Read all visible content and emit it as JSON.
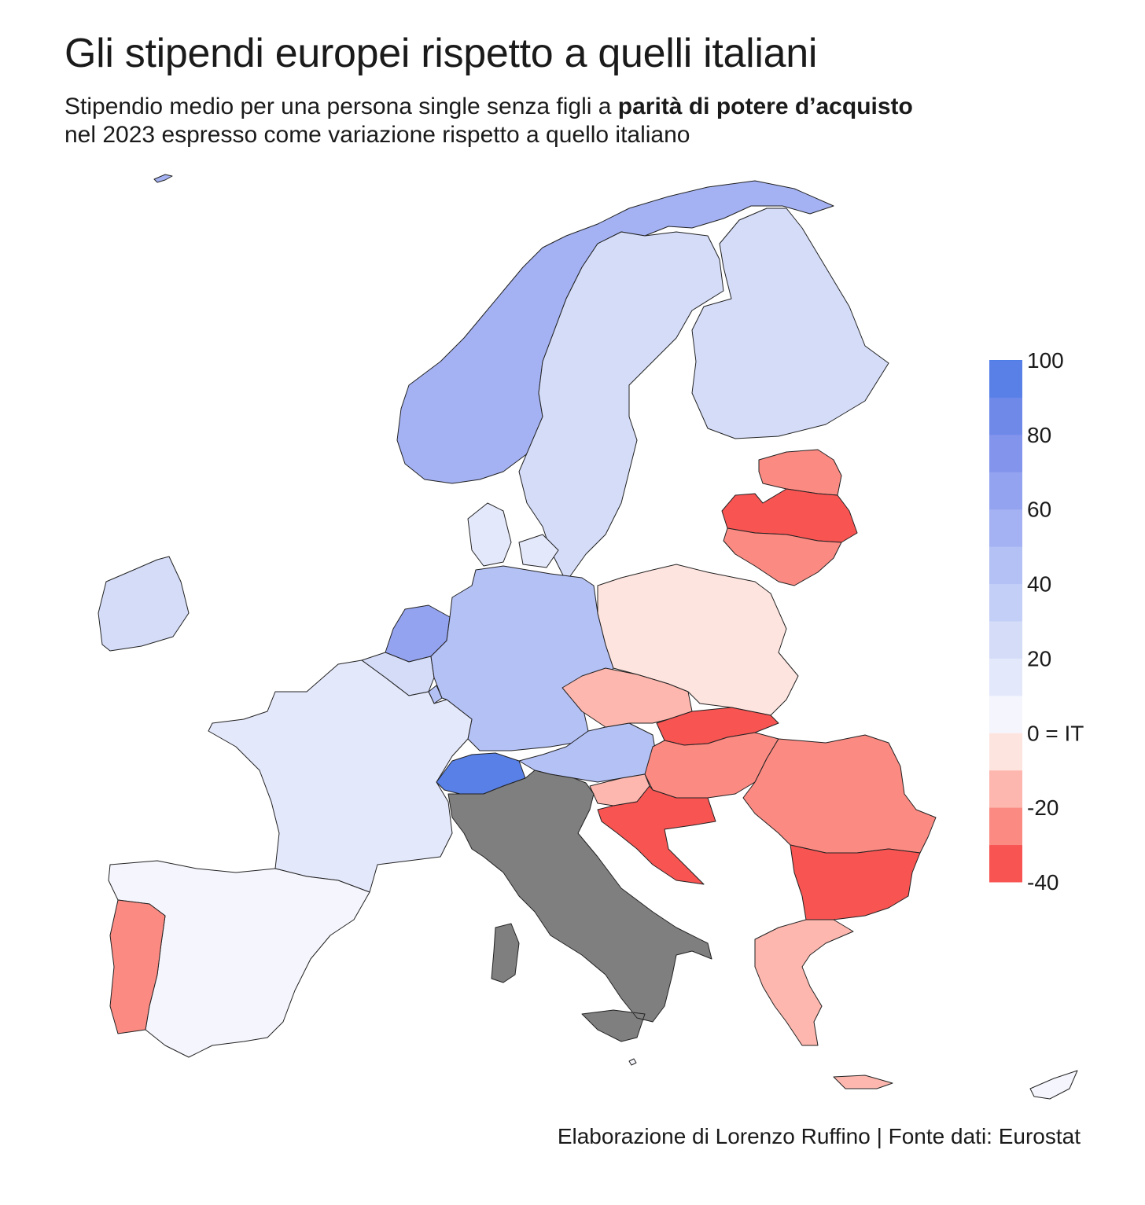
{
  "title": "Gli stipendi europei rispetto a quelli italiani",
  "subtitle": {
    "line1_pre": "Stipendio medio per una persona single senza figli a ",
    "line1_bold": "parità di potere d’acquisto",
    "line2": "nel 2023 espresso come variazione rispetto a quello italiano"
  },
  "source": "Elaborazione di Lorenzo Ruffino | Fonte dati: Eurostat",
  "colors": {
    "reference": "#7f7f7f",
    "bins": [
      "#f75452",
      "#fb8a82",
      "#fdb7ae",
      "#fee4df",
      "#f5f6fd",
      "#e4e8fb",
      "#d4dcf8",
      "#c4cff7",
      "#b4c1f5",
      "#a4b2f3",
      "#94a3f0",
      "#8394ec",
      "#6f89e9",
      "#5880e7",
      "#3f7be6",
      "#2b7be6"
    ]
  },
  "chart_data": {
    "type": "choropleth",
    "reference_country": "Italia",
    "legend": {
      "min": -40,
      "max": 100,
      "ticks": [
        {
          "value": 100,
          "label": "100"
        },
        {
          "value": 80,
          "label": "80"
        },
        {
          "value": 60,
          "label": "60"
        },
        {
          "value": 40,
          "label": "40"
        },
        {
          "value": 20,
          "label": "20"
        },
        {
          "value": 0,
          "label": "0 = IT"
        },
        {
          "value": -20,
          "label": "-20"
        },
        {
          "value": -40,
          "label": "-40"
        }
      ]
    },
    "countries": [
      {
        "name": "Islanda",
        "value": 55
      },
      {
        "name": "Norvegia",
        "value": 55
      },
      {
        "name": "Svezia",
        "value": 25
      },
      {
        "name": "Finlandia",
        "value": 25
      },
      {
        "name": "Danimarca",
        "value": 15
      },
      {
        "name": "Irlanda",
        "value": 25
      },
      {
        "name": "Paesi Bassi",
        "value": 65
      },
      {
        "name": "Belgio",
        "value": 25
      },
      {
        "name": "Lussemburgo",
        "value": 45
      },
      {
        "name": "Germania",
        "value": 45
      },
      {
        "name": "Francia",
        "value": 15
      },
      {
        "name": "Spagna",
        "value": 5
      },
      {
        "name": "Portogallo",
        "value": -25
      },
      {
        "name": "Svizzera",
        "value": 95
      },
      {
        "name": "Austria",
        "value": 45
      },
      {
        "name": "Polonia",
        "value": -5
      },
      {
        "name": "Cechia",
        "value": -15
      },
      {
        "name": "Slovacchia",
        "value": -35
      },
      {
        "name": "Ungheria",
        "value": -25
      },
      {
        "name": "Slovenia",
        "value": -15
      },
      {
        "name": "Croazia",
        "value": -35
      },
      {
        "name": "Romania",
        "value": -25
      },
      {
        "name": "Bulgaria",
        "value": -35
      },
      {
        "name": "Grecia",
        "value": -15
      },
      {
        "name": "Cipro",
        "value": 5
      },
      {
        "name": "Estonia",
        "value": -25
      },
      {
        "name": "Lettonia",
        "value": -35
      },
      {
        "name": "Lituania",
        "value": -25
      },
      {
        "name": "Malta",
        "value": 5
      }
    ]
  }
}
